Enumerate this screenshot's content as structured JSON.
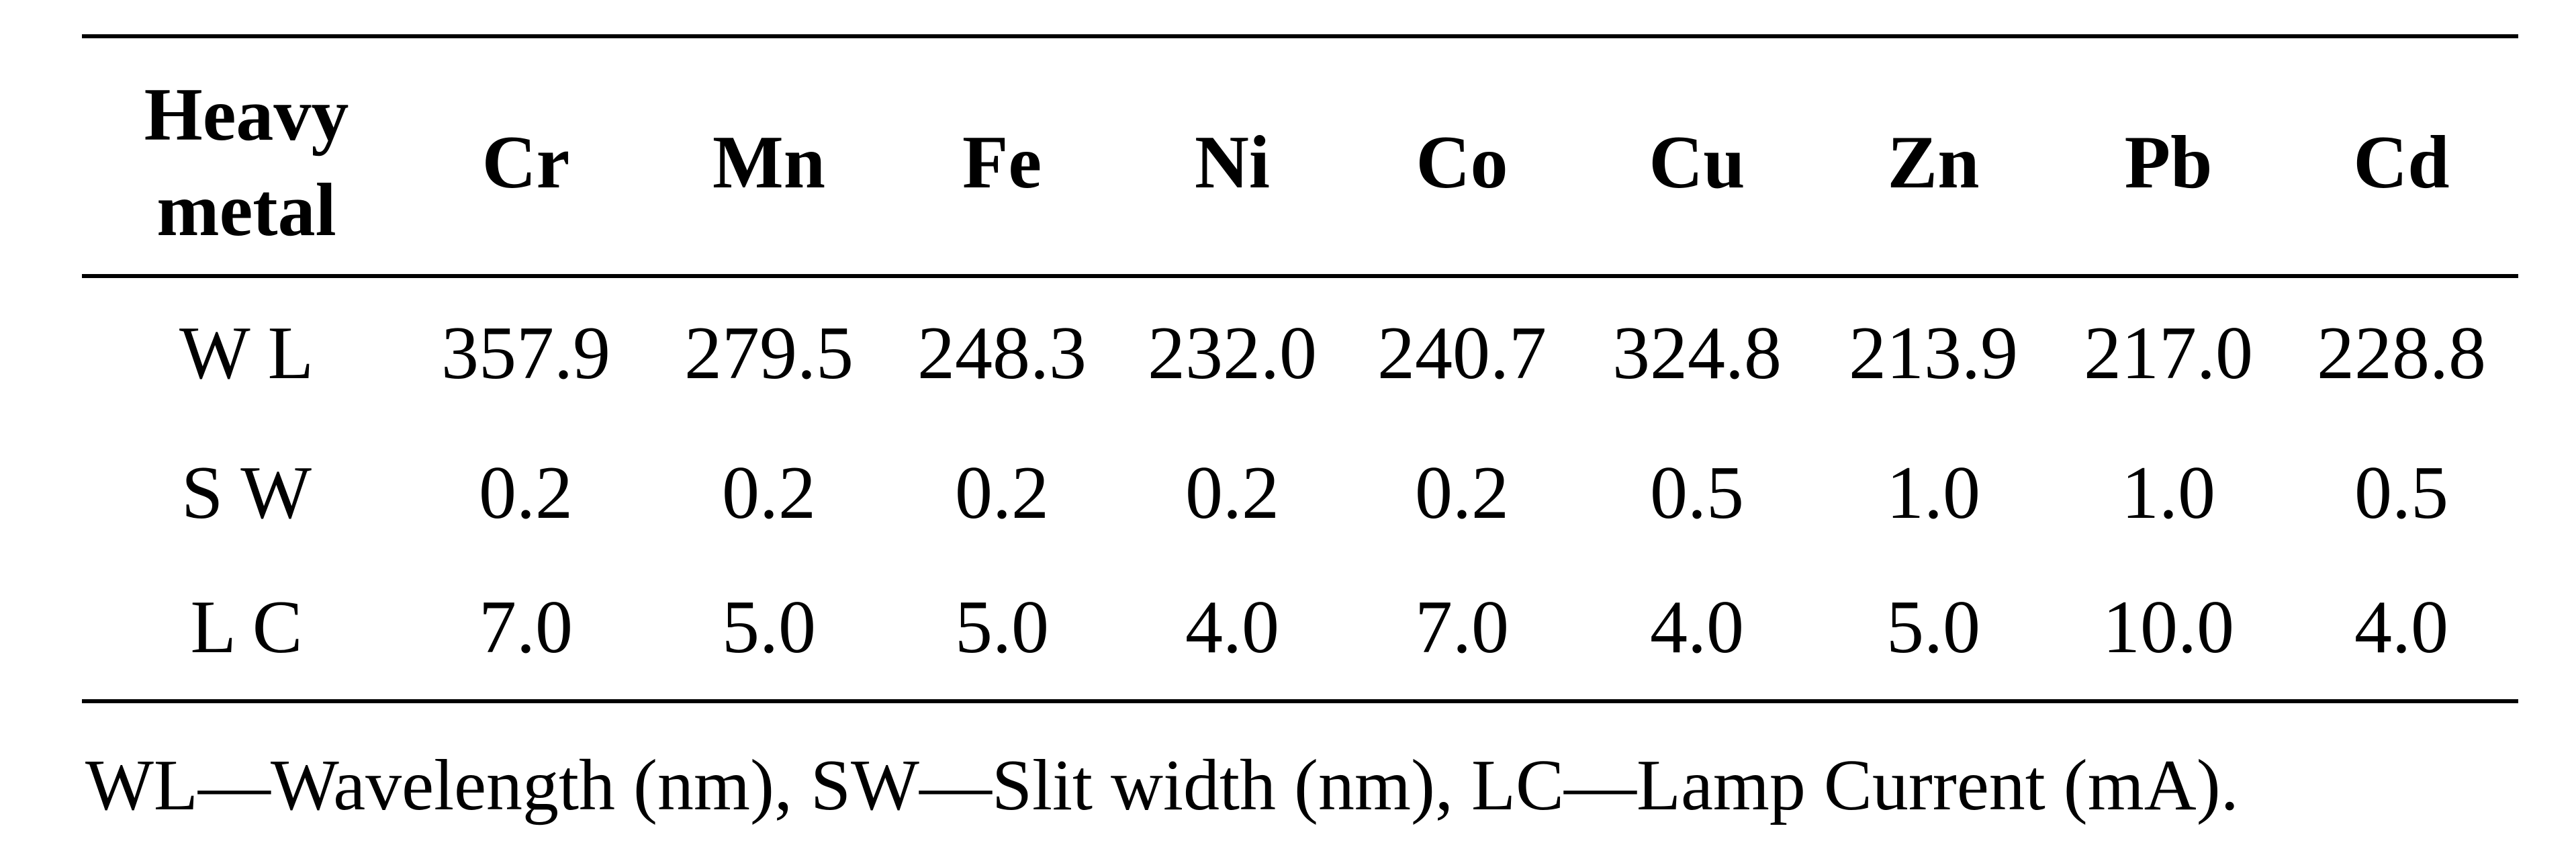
{
  "table": {
    "header": [
      "Heavy metal",
      "Cr",
      "Mn",
      "Fe",
      "Ni",
      "Co",
      "Cu",
      "Zn",
      "Pb",
      "Cd"
    ],
    "rows": [
      [
        "W L",
        "357.9",
        "279.5",
        "248.3",
        "232.0",
        "240.7",
        "324.8",
        "213.9",
        "217.0",
        "228.8"
      ],
      [
        "S W",
        "0.2",
        "0.2",
        "0.2",
        "0.2",
        "0.2",
        "0.5",
        "1.0",
        "1.0",
        "0.5"
      ],
      [
        "L C",
        "7.0",
        "5.0",
        "5.0",
        "4.0",
        "7.0",
        "4.0",
        "5.0",
        "10.0",
        "4.0"
      ]
    ]
  },
  "footnote": "WL—Wavelength (nm), SW—Slit width (nm), LC—Lamp Current (mA)."
}
